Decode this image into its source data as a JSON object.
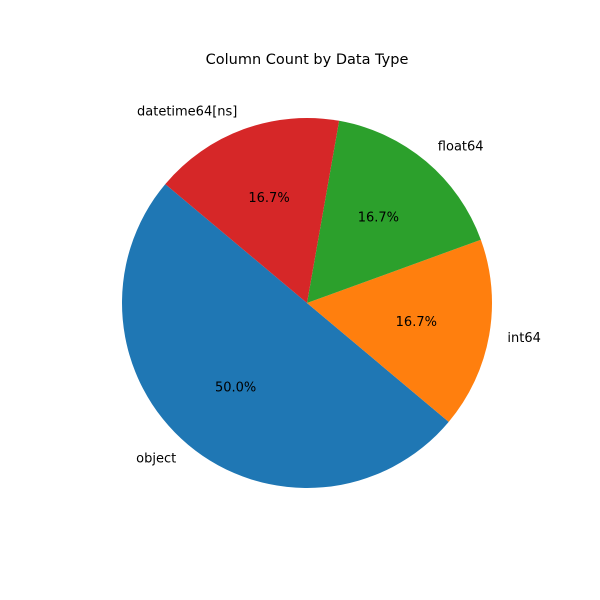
{
  "chart_data": {
    "type": "pie",
    "title": "Column Count by Data Type",
    "start_angle_deg": 140,
    "direction": "counterclockwise",
    "slices": [
      {
        "label": "object",
        "value": 3,
        "percent": "50.0%",
        "color": "#1f77b4"
      },
      {
        "label": "int64",
        "value": 1,
        "percent": "16.7%",
        "color": "#ff7f0e"
      },
      {
        "label": "float64",
        "value": 1,
        "percent": "16.7%",
        "color": "#2ca02c"
      },
      {
        "label": "datetime64[ns]",
        "value": 1,
        "percent": "16.7%",
        "color": "#d62728"
      }
    ]
  }
}
